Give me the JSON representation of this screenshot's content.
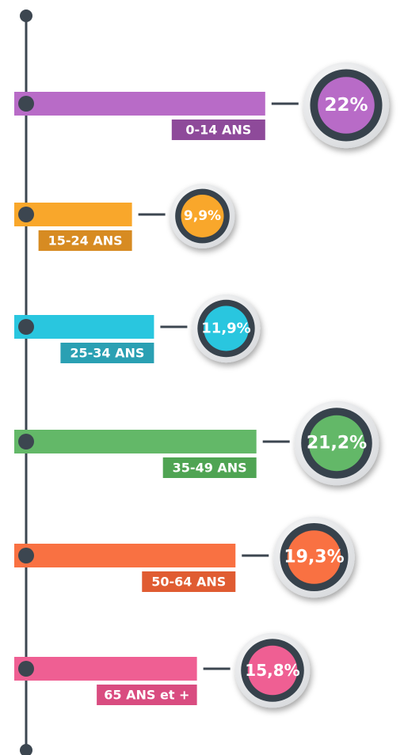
{
  "chart_data": {
    "type": "bar",
    "orientation": "horizontal",
    "categories": [
      "0-14 ANS",
      "15-24 ANS",
      "25-34 ANS",
      "35-49 ANS",
      "50-64 ANS",
      "65 ANS et +"
    ],
    "values": [
      22,
      9.9,
      11.9,
      21.2,
      19.3,
      15.8
    ],
    "value_labels": [
      "22%",
      "9,9%",
      "11,9%",
      "21,2%",
      "19,3%",
      "15,8%"
    ],
    "colors": [
      "#b86bc7",
      "#f9a72b",
      "#29c6df",
      "#63b868",
      "#f97142",
      "#ef5f93"
    ],
    "label_colors": [
      "#8e4a9a",
      "#d78b22",
      "#2aa0b3",
      "#4fa453",
      "#e05c32",
      "#d94c80"
    ]
  }
}
